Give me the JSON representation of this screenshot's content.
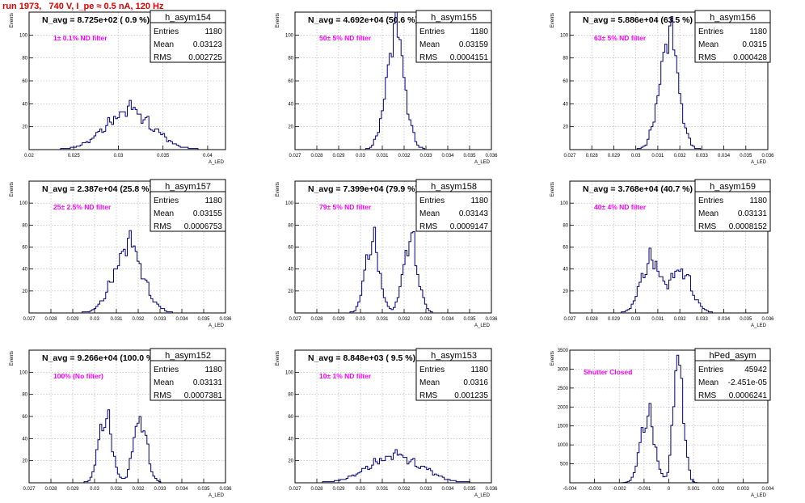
{
  "page": {
    "title": "run 1973,   740 V, I_pe ≈ 0.5 nA, 120 Hz",
    "colors": {
      "title": "#e00000",
      "histogram": "#00007f",
      "annotation": "#ff00ff",
      "grid": "#b0b0b0",
      "axis": "#000000"
    }
  },
  "chart_data": [
    {
      "type": "histogram",
      "name": "h_asym154",
      "header": "N_avg = 8.725e+02 ( 0.9 %)",
      "annotation": "1± 0.1% ND filter",
      "stats": [
        [
          "Entries",
          "1180"
        ],
        [
          "Mean",
          "0.03123"
        ],
        [
          "RMS",
          "0.002725"
        ]
      ],
      "ylabel": "Events",
      "xlabel": "A_LED",
      "xlim": [
        0.02,
        0.042
      ],
      "ylim": [
        0,
        120
      ],
      "xticks": [
        0.02,
        0.025,
        0.03,
        0.035,
        0.04
      ],
      "xticklabels": [
        "0.02",
        "0.025",
        "0.03",
        "0.035",
        "0.04"
      ],
      "yticks": [
        0,
        20,
        40,
        60,
        80,
        100
      ],
      "yticklabels": [
        "",
        "20",
        "40",
        "60",
        "80",
        "100"
      ],
      "peaks": [
        {
          "mu": 0.0312,
          "sigma": 0.0026,
          "amp": 35
        }
      ],
      "grid": true
    },
    {
      "type": "histogram",
      "name": "h_asym155",
      "header": "N_avg = 4.692e+04 (50.6 %)",
      "annotation": "50± 5% ND filter",
      "stats": [
        [
          "Entries",
          "1180"
        ],
        [
          "Mean",
          "0.03159"
        ],
        [
          "RMS",
          "0.0004151"
        ]
      ],
      "ylabel": "Events",
      "xlabel": "A_LED",
      "xlim": [
        0.027,
        0.036
      ],
      "ylim": [
        0,
        120
      ],
      "xticks": [
        0.027,
        0.028,
        0.029,
        0.03,
        0.031,
        0.032,
        0.033,
        0.034,
        0.035,
        0.036
      ],
      "xticklabels": [
        "0.027",
        "0.028",
        "0.029",
        "0.03",
        "0.031",
        "0.032",
        "0.033",
        "0.034",
        "0.035",
        "0.036"
      ],
      "yticks": [
        0,
        20,
        40,
        60,
        80,
        100
      ],
      "yticklabels": [
        "",
        "20",
        "40",
        "60",
        "80",
        "100"
      ],
      "peaks": [
        {
          "mu": 0.0316,
          "sigma": 0.00042,
          "amp": 102
        }
      ],
      "grid": true
    },
    {
      "type": "histogram",
      "name": "h_asym156",
      "header": "N_avg = 5.886e+04 (63.5 %)",
      "annotation": "63± 5% ND filter",
      "stats": [
        [
          "Entries",
          "1180"
        ],
        [
          "Mean",
          "0.0315"
        ],
        [
          "RMS",
          "0.000428"
        ]
      ],
      "ylabel": "Events",
      "xlabel": "A_LED",
      "xlim": [
        0.027,
        0.036
      ],
      "ylim": [
        0,
        120
      ],
      "xticks": [
        0.027,
        0.028,
        0.029,
        0.03,
        0.031,
        0.032,
        0.033,
        0.034,
        0.035,
        0.036
      ],
      "xticklabels": [
        "0.027",
        "0.028",
        "0.029",
        "0.03",
        "0.031",
        "0.032",
        "0.033",
        "0.034",
        "0.035",
        "0.036"
      ],
      "yticks": [
        0,
        20,
        40,
        60,
        80,
        100
      ],
      "yticklabels": [
        "",
        "20",
        "40",
        "60",
        "80",
        "100"
      ],
      "peaks": [
        {
          "mu": 0.0315,
          "sigma": 0.00043,
          "amp": 100
        }
      ],
      "grid": true
    },
    {
      "type": "histogram",
      "name": "h_asym157",
      "header": "N_avg = 2.387e+04 (25.8 %)",
      "annotation": "25± 2.5% ND filter",
      "stats": [
        [
          "Entries",
          "1180"
        ],
        [
          "Mean",
          "0.03155"
        ],
        [
          "RMS",
          "0.0006753"
        ]
      ],
      "ylabel": "Events",
      "xlabel": "A_LED",
      "xlim": [
        0.027,
        0.036
      ],
      "ylim": [
        0,
        120
      ],
      "xticks": [
        0.027,
        0.028,
        0.029,
        0.03,
        0.031,
        0.032,
        0.033,
        0.034,
        0.035,
        0.036
      ],
      "xticklabels": [
        "0.027",
        "0.028",
        "0.029",
        "0.03",
        "0.031",
        "0.032",
        "0.033",
        "0.034",
        "0.035",
        "0.036"
      ],
      "yticks": [
        0,
        20,
        40,
        60,
        80,
        100
      ],
      "yticklabels": [
        "",
        "20",
        "40",
        "60",
        "80",
        "100"
      ],
      "peaks": [
        {
          "mu": 0.03155,
          "sigma": 0.00066,
          "amp": 62
        }
      ],
      "grid": true
    },
    {
      "type": "histogram",
      "name": "h_asym158",
      "header": "N_avg = 7.399e+04 (79.9 %)",
      "annotation": "79± 5% ND filter",
      "stats": [
        [
          "Entries",
          "1180"
        ],
        [
          "Mean",
          "0.03143"
        ],
        [
          "RMS",
          "0.0009147"
        ]
      ],
      "ylabel": "Events",
      "xlabel": "A_LED",
      "xlim": [
        0.027,
        0.036
      ],
      "ylim": [
        0,
        120
      ],
      "xticks": [
        0.027,
        0.028,
        0.029,
        0.03,
        0.031,
        0.032,
        0.033,
        0.034,
        0.035,
        0.036
      ],
      "xticklabels": [
        "0.027",
        "0.028",
        "0.029",
        "0.03",
        "0.031",
        "0.032",
        "0.033",
        "0.034",
        "0.035",
        "0.036"
      ],
      "yticks": [
        0,
        20,
        40,
        60,
        80,
        100
      ],
      "yticklabels": [
        "",
        "20",
        "40",
        "60",
        "80",
        "100"
      ],
      "peaks": [
        {
          "mu": 0.03055,
          "sigma": 0.00032,
          "amp": 68
        },
        {
          "mu": 0.0323,
          "sigma": 0.00032,
          "amp": 72
        }
      ],
      "grid": true
    },
    {
      "type": "histogram",
      "name": "h_asym159",
      "header": "N_avg = 3.768e+04 (40.7 %)",
      "annotation": "40± 4% ND filter",
      "stats": [
        [
          "Entries",
          "1180"
        ],
        [
          "Mean",
          "0.03131"
        ],
        [
          "RMS",
          "0.0008152"
        ]
      ],
      "ylabel": "Events",
      "xlabel": "A_LED",
      "xlim": [
        0.027,
        0.036
      ],
      "ylim": [
        0,
        120
      ],
      "xticks": [
        0.027,
        0.028,
        0.029,
        0.03,
        0.031,
        0.032,
        0.033,
        0.034,
        0.035,
        0.036
      ],
      "xticklabels": [
        "0.027",
        "0.028",
        "0.029",
        "0.03",
        "0.031",
        "0.032",
        "0.033",
        "0.034",
        "0.035",
        "0.036"
      ],
      "yticks": [
        0,
        20,
        40,
        60,
        80,
        100
      ],
      "yticklabels": [
        "",
        "20",
        "40",
        "60",
        "80",
        "100"
      ],
      "peaks": [
        {
          "mu": 0.0307,
          "sigma": 0.00045,
          "amp": 50
        },
        {
          "mu": 0.0321,
          "sigma": 0.00045,
          "amp": 40
        }
      ],
      "grid": true
    },
    {
      "type": "histogram",
      "name": "h_asym152",
      "header": "N_avg = 9.266e+04 (100.0 %)",
      "annotation": "100% (No filter)",
      "stats": [
        [
          "Entries",
          "1180"
        ],
        [
          "Mean",
          "0.03131"
        ],
        [
          "RMS",
          "0.0007381"
        ]
      ],
      "ylabel": "Events",
      "xlabel": "A_LED",
      "xlim": [
        0.027,
        0.036
      ],
      "ylim": [
        0,
        120
      ],
      "xticks": [
        0.027,
        0.028,
        0.029,
        0.03,
        0.031,
        0.032,
        0.033,
        0.034,
        0.035,
        0.036
      ],
      "xticklabels": [
        "0.027",
        "0.028",
        "0.029",
        "0.03",
        "0.031",
        "0.032",
        "0.033",
        "0.034",
        "0.035",
        "0.036"
      ],
      "yticks": [
        0,
        20,
        40,
        60,
        80,
        100
      ],
      "yticklabels": [
        "",
        "20",
        "40",
        "60",
        "80",
        "100"
      ],
      "peaks": [
        {
          "mu": 0.0305,
          "sigma": 0.0003,
          "amp": 62
        },
        {
          "mu": 0.0321,
          "sigma": 0.0003,
          "amp": 60
        }
      ],
      "grid": true
    },
    {
      "type": "histogram",
      "name": "h_asym153",
      "header": "N_avg = 8.848e+03 ( 9.5 %)",
      "annotation": "10± 1% ND filter",
      "stats": [
        [
          "Entries",
          "1180"
        ],
        [
          "Mean",
          "0.0316"
        ],
        [
          "RMS",
          "0.001235"
        ]
      ],
      "ylabel": "Events",
      "xlabel": "A_LED",
      "xlim": [
        0.027,
        0.036
      ],
      "ylim": [
        0,
        120
      ],
      "xticks": [
        0.027,
        0.028,
        0.029,
        0.03,
        0.031,
        0.032,
        0.033,
        0.034,
        0.035,
        0.036
      ],
      "xticklabels": [
        "0.027",
        "0.028",
        "0.029",
        "0.03",
        "0.031",
        "0.032",
        "0.033",
        "0.034",
        "0.035",
        "0.036"
      ],
      "yticks": [
        0,
        20,
        40,
        60,
        80,
        100
      ],
      "yticklabels": [
        "",
        "20",
        "40",
        "60",
        "80",
        "100"
      ],
      "peaks": [
        {
          "mu": 0.0316,
          "sigma": 0.0012,
          "amp": 25
        }
      ],
      "grid": true
    },
    {
      "type": "histogram",
      "name": "hPed_asym",
      "header": "",
      "annotation": "Shutter Closed",
      "stats": [
        [
          "Entries",
          "45942"
        ],
        [
          "Mean",
          "-2.451e-05"
        ],
        [
          "RMS",
          "0.0006241"
        ]
      ],
      "ylabel": "Events",
      "xlabel": "A_LED",
      "xlim": [
        -0.004,
        0.004
      ],
      "ylim": [
        0,
        3500
      ],
      "xticks": [
        -0.004,
        -0.003,
        -0.002,
        -0.001,
        0,
        0.001,
        0.002,
        0.003,
        0.004
      ],
      "xticklabels": [
        "-0.004",
        "-0.003",
        "-0.002",
        "-0.001",
        "0",
        "0.001",
        "0.002",
        "0.003",
        "0.004"
      ],
      "yticks": [
        0,
        500,
        1000,
        1500,
        2000,
        2500,
        3000,
        3500
      ],
      "yticklabels": [
        "",
        "500",
        "1000",
        "1500",
        "2000",
        "2500",
        "3000",
        "3500"
      ],
      "peaks": [
        {
          "mu": -0.00085,
          "sigma": 0.00028,
          "amp": 1850
        },
        {
          "mu": 0.0004,
          "sigma": 0.0002,
          "amp": 3300
        }
      ],
      "grid": true
    }
  ]
}
